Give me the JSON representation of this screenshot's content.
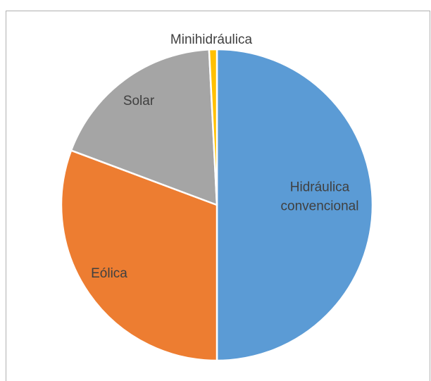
{
  "chart_data": {
    "type": "pie",
    "categories": [
      "Hidráulica convencional",
      "Eólica",
      "Solar",
      "Minihidráulica"
    ],
    "values": [
      50.0,
      30.7,
      18.5,
      0.8
    ],
    "unit": "%",
    "title": "",
    "legend": "none",
    "start_angle_deg": 0,
    "direction": "clockwise",
    "colors": [
      "#5B9BD5",
      "#ED7D31",
      "#A5A5A5",
      "#FFC000"
    ],
    "slice_border_color": "#ffffff",
    "labels": [
      {
        "lines": [
          "Hidráulica",
          "convencional"
        ]
      },
      {
        "lines": [
          "Eólica"
        ]
      },
      {
        "lines": [
          "Solar"
        ]
      },
      {
        "lines": [
          "Minihidráulica"
        ]
      }
    ]
  }
}
